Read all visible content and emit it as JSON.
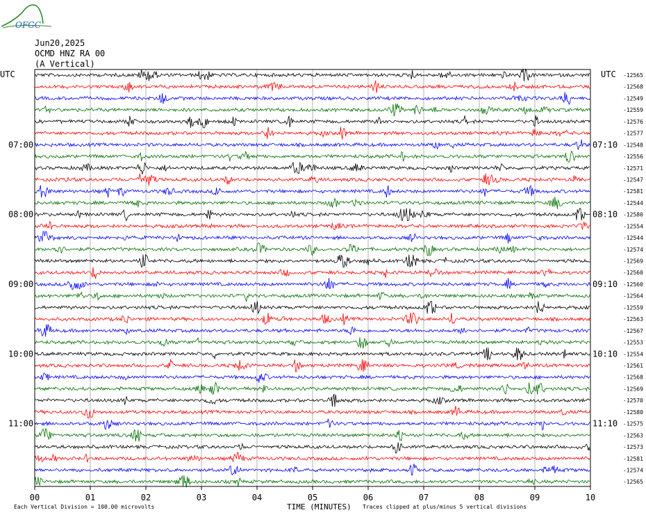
{
  "logo_text": "OFGC",
  "header": {
    "date": "Jun20,2025",
    "station": "OCMD HNZ RA 00",
    "component": "(A Vertical)"
  },
  "footer": {
    "division": "Each Vertical Division =  100.00 microvolts",
    "clip": "Traces clipped at plus/minus 5 vertical divisions"
  },
  "colors": {
    "trace_cycle": [
      "#000000",
      "#ff0000",
      "#0000ff",
      "#007000"
    ],
    "grid": "#808080"
  },
  "chart_data": {
    "type": "line",
    "title": "",
    "xlabel": "TIME (MINUTES)",
    "x_ticks": [
      "00",
      "01",
      "02",
      "03",
      "04",
      "05",
      "06",
      "07",
      "08",
      "09",
      "10"
    ],
    "xlim": [
      0,
      10
    ],
    "left_axis_label": "UTC",
    "right_axis_label": "UTC",
    "left_hour_labels": [
      {
        "row": 6,
        "label": "07:00"
      },
      {
        "row": 12,
        "label": "08:00"
      },
      {
        "row": 18,
        "label": "09:00"
      },
      {
        "row": 24,
        "label": "10:00"
      },
      {
        "row": 30,
        "label": "11:00"
      }
    ],
    "right_hour_labels": [
      {
        "row": 6,
        "label": "07:10"
      },
      {
        "row": 12,
        "label": "08:10"
      },
      {
        "row": 18,
        "label": "09:10"
      },
      {
        "row": 24,
        "label": "10:10"
      },
      {
        "row": 30,
        "label": "11:10"
      }
    ],
    "trace_offsets": [
      -12565,
      -12568,
      -12549,
      -12559,
      -12576,
      -12577,
      -12548,
      -12556,
      -12571,
      -12547,
      -12581,
      -12544,
      -12580,
      -12554,
      -12544,
      -12574,
      -12569,
      -12560,
      -12560,
      -12564,
      -12559,
      -12563,
      -12567,
      -12553,
      -12554,
      -12561,
      -12568,
      -12569,
      -12570,
      -12580,
      -12575,
      -12563,
      -12573,
      -12581,
      -12574,
      -12565
    ],
    "trace_count": 36,
    "amplitude_units": "microvolts",
    "units_per_division": 100.0,
    "clip_divisions": 5
  }
}
